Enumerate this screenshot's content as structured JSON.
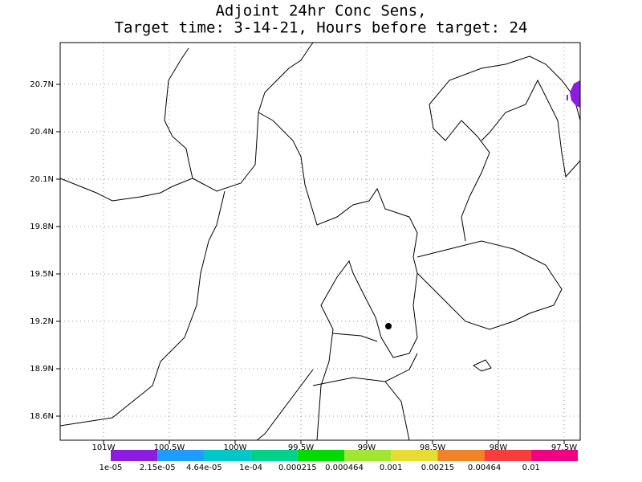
{
  "title": [
    "Adjoint 24hr Conc Sens,",
    "Target time: 3-14-21, Hours before target: 24"
  ],
  "lat_ticks": [
    {
      "value": 20.7,
      "label": "20.7N"
    },
    {
      "value": 20.4,
      "label": "20.4N"
    },
    {
      "value": 20.1,
      "label": "20.1N"
    },
    {
      "value": 19.8,
      "label": "19.8N"
    },
    {
      "value": 19.5,
      "label": "19.5N"
    },
    {
      "value": 19.2,
      "label": "19.2N"
    },
    {
      "value": 18.9,
      "label": "18.9N"
    },
    {
      "value": 18.6,
      "label": "18.6N"
    }
  ],
  "lon_ticks": [
    {
      "value": 101,
      "label": "101W"
    },
    {
      "value": 100.5,
      "label": "100.5W"
    },
    {
      "value": 100,
      "label": "100W"
    },
    {
      "value": 99.5,
      "label": "99.5W"
    },
    {
      "value": 99,
      "label": "99W"
    },
    {
      "value": 98.5,
      "label": "98.5W"
    },
    {
      "value": 98,
      "label": "98W"
    },
    {
      "value": 97.5,
      "label": "97.5W"
    }
  ],
  "colorbar": {
    "colors": [
      "#8c1ce0",
      "#1e9cff",
      "#00c8c8",
      "#00d28c",
      "#00dc00",
      "#a0e632",
      "#e6dc32",
      "#f08228",
      "#fa3c3c",
      "#f00082"
    ],
    "labels": [
      "1e-05",
      "2.15e-05",
      "4.64e-05",
      "1e-04",
      "0.000215",
      "0.000464",
      "0.001",
      "0.00215",
      "0.00464",
      "0.01"
    ]
  }
}
